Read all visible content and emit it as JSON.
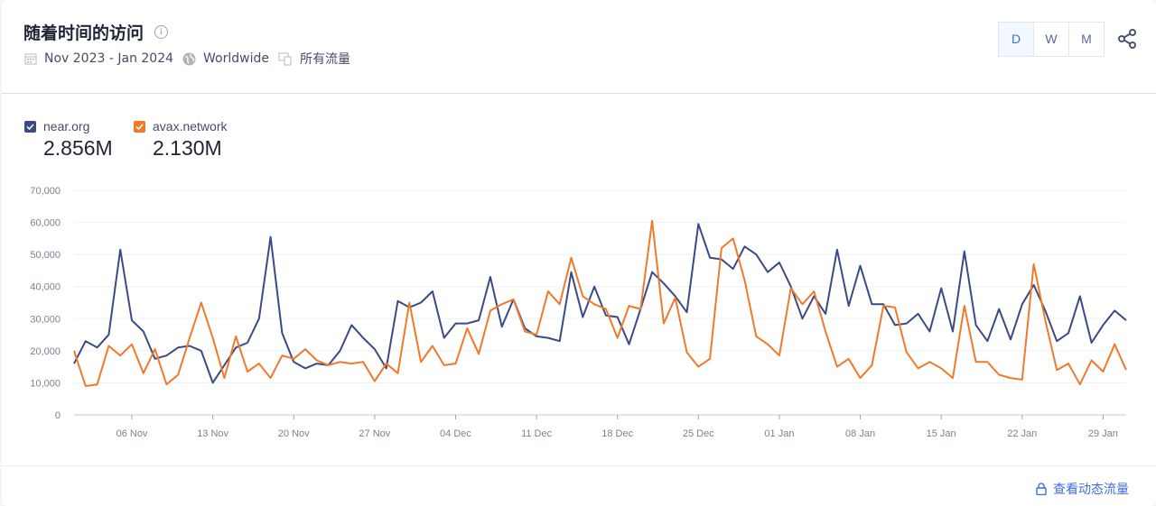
{
  "header": {
    "title": "随着时间的访问",
    "info_icon": "info-icon",
    "date_range": "Nov 2023 - Jan 2024",
    "region": "Worldwide",
    "traffic": "所有流量"
  },
  "granularity": {
    "options": [
      "D",
      "W",
      "M"
    ],
    "selected": "D"
  },
  "share_icon": "share-icon",
  "legend": [
    {
      "name": "near.org",
      "total": "2.856M",
      "color": "#3b4a87",
      "checked": true
    },
    {
      "name": "avax.network",
      "total": "2.130M",
      "color": "#f07a2a",
      "checked": true
    }
  ],
  "footer": {
    "link": "查看动态流量",
    "icon": "lock-icon"
  },
  "chart_data": {
    "type": "line",
    "grid": true,
    "ylim": [
      0,
      70000
    ],
    "y_ticks": [
      "0",
      "10,000",
      "20,000",
      "30,000",
      "40,000",
      "50,000",
      "60,000",
      "70,000"
    ],
    "x_ticks": [
      "06 Nov",
      "13 Nov",
      "20 Nov",
      "27 Nov",
      "04 Dec",
      "11 Dec",
      "18 Dec",
      "25 Dec",
      "01 Jan",
      "08 Jan",
      "15 Jan",
      "22 Jan",
      "29 Jan"
    ],
    "x": [
      "2023-11-01",
      "2023-11-02",
      "2023-11-03",
      "2023-11-04",
      "2023-11-05",
      "2023-11-06",
      "2023-11-07",
      "2023-11-08",
      "2023-11-09",
      "2023-11-10",
      "2023-11-11",
      "2023-11-12",
      "2023-11-13",
      "2023-11-14",
      "2023-11-15",
      "2023-11-16",
      "2023-11-17",
      "2023-11-18",
      "2023-11-19",
      "2023-11-20",
      "2023-11-21",
      "2023-11-22",
      "2023-11-23",
      "2023-11-24",
      "2023-11-25",
      "2023-11-26",
      "2023-11-27",
      "2023-11-28",
      "2023-11-29",
      "2023-11-30",
      "2023-12-01",
      "2023-12-02",
      "2023-12-03",
      "2023-12-04",
      "2023-12-05",
      "2023-12-06",
      "2023-12-07",
      "2023-12-08",
      "2023-12-09",
      "2023-12-10",
      "2023-12-11",
      "2023-12-12",
      "2023-12-13",
      "2023-12-14",
      "2023-12-15",
      "2023-12-16",
      "2023-12-17",
      "2023-12-18",
      "2023-12-19",
      "2023-12-20",
      "2023-12-21",
      "2023-12-22",
      "2023-12-23",
      "2023-12-24",
      "2023-12-25",
      "2023-12-26",
      "2023-12-27",
      "2023-12-28",
      "2023-12-29",
      "2023-12-30",
      "2023-12-31",
      "2024-01-01",
      "2024-01-02",
      "2024-01-03",
      "2024-01-04",
      "2024-01-05",
      "2024-01-06",
      "2024-01-07",
      "2024-01-08",
      "2024-01-09",
      "2024-01-10",
      "2024-01-11",
      "2024-01-12",
      "2024-01-13",
      "2024-01-14",
      "2024-01-15",
      "2024-01-16",
      "2024-01-17",
      "2024-01-18",
      "2024-01-19",
      "2024-01-20",
      "2024-01-21",
      "2024-01-22",
      "2024-01-23",
      "2024-01-24",
      "2024-01-25",
      "2024-01-26",
      "2024-01-27",
      "2024-01-28",
      "2024-01-29",
      "2024-01-30",
      "2024-01-31"
    ],
    "series": [
      {
        "name": "near.org",
        "color": "#3b4a87",
        "values": [
          16000,
          23000,
          21000,
          25000,
          51500,
          29500,
          26000,
          17500,
          18500,
          21000,
          21500,
          20000,
          10000,
          15500,
          21000,
          22500,
          30000,
          55500,
          25500,
          16500,
          14500,
          16000,
          15500,
          20000,
          28000,
          24000,
          20500,
          14500,
          35500,
          33500,
          35000,
          38500,
          24000,
          28500,
          28500,
          29500,
          43000,
          27500,
          36000,
          27000,
          24500,
          24000,
          23000,
          44500,
          30500,
          40000,
          31000,
          30500,
          22000,
          33000,
          44500,
          41000,
          37000,
          32000,
          59500,
          49000,
          48500,
          45500,
          52500,
          50000,
          44500,
          47500,
          40000,
          30000,
          37000,
          31500,
          51500,
          34000,
          46500,
          34500,
          34500,
          28000,
          28500,
          31500,
          26000,
          39500,
          26000,
          51000,
          28000,
          23000,
          33000,
          23500,
          34500,
          40500,
          32500,
          23000,
          25500,
          37000,
          22500,
          28000,
          32500,
          29500
        ]
      },
      {
        "name": "avax.network",
        "color": "#f07a2a",
        "values": [
          20000,
          9000,
          9500,
          21500,
          18500,
          22000,
          13000,
          20500,
          9500,
          12500,
          24000,
          35000,
          24000,
          11500,
          24500,
          13500,
          16000,
          11500,
          18500,
          17500,
          20500,
          17000,
          15500,
          16500,
          16000,
          16500,
          10500,
          16000,
          13000,
          35000,
          16500,
          21500,
          15500,
          16000,
          27000,
          19000,
          32500,
          34500,
          36000,
          26000,
          25000,
          38500,
          34500,
          49000,
          37000,
          34500,
          33000,
          24000,
          34000,
          33000,
          60500,
          28500,
          36500,
          19500,
          15000,
          17500,
          52000,
          55000,
          42000,
          24500,
          22000,
          18500,
          39500,
          34500,
          38500,
          26000,
          15000,
          17500,
          11500,
          15500,
          34000,
          33500,
          19500,
          14500,
          16500,
          14500,
          11500,
          34000,
          16500,
          16500,
          12500,
          11500,
          11000,
          47000,
          29500,
          14000,
          16000,
          9500,
          17000,
          13500,
          22000,
          14000
        ]
      }
    ]
  }
}
